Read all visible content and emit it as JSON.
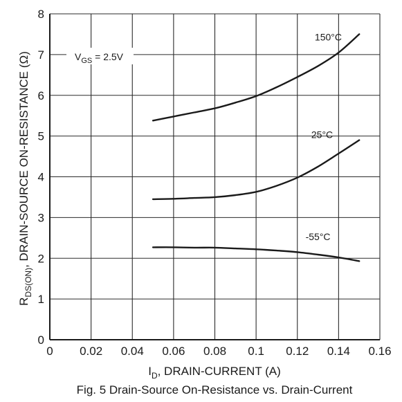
{
  "chart_data": {
    "type": "line",
    "xlabel": {
      "main": "I",
      "sub": "D",
      "rest": ", DRAIN-CURRENT (A)"
    },
    "ylabel": {
      "main": "R",
      "sub": "DS(ON)",
      "rest": ", DRAIN-SOURCE ON-RESISTANCE (Ω)"
    },
    "caption": "Fig. 5  Drain-Source On-Resistance vs. Drain-Current",
    "annotation": {
      "main": "V",
      "sub": "GS",
      "rest": " = 2.5V"
    },
    "xlim": [
      0,
      0.16
    ],
    "ylim": [
      0,
      8
    ],
    "xticks": [
      "0",
      "0.02",
      "0.04",
      "0.06",
      "0.08",
      "0.1",
      "0.12",
      "0.14",
      "0.16"
    ],
    "yticks": [
      "0",
      "1",
      "2",
      "3",
      "4",
      "5",
      "6",
      "7",
      "8"
    ],
    "grid": true,
    "series": [
      {
        "name": "150°C",
        "x": [
          0.05,
          0.06,
          0.07,
          0.08,
          0.09,
          0.1,
          0.11,
          0.12,
          0.13,
          0.14,
          0.15
        ],
        "y": [
          5.38,
          5.48,
          5.58,
          5.68,
          5.82,
          5.98,
          6.2,
          6.45,
          6.72,
          7.05,
          7.5
        ]
      },
      {
        "name": "25°C",
        "x": [
          0.05,
          0.06,
          0.07,
          0.08,
          0.09,
          0.1,
          0.11,
          0.12,
          0.13,
          0.14,
          0.15
        ],
        "y": [
          3.45,
          3.46,
          3.48,
          3.5,
          3.55,
          3.63,
          3.78,
          3.98,
          4.25,
          4.57,
          4.9
        ]
      },
      {
        "name": "-55°C",
        "x": [
          0.05,
          0.06,
          0.07,
          0.08,
          0.09,
          0.1,
          0.11,
          0.12,
          0.13,
          0.14,
          0.15
        ],
        "y": [
          2.27,
          2.27,
          2.26,
          2.26,
          2.24,
          2.22,
          2.19,
          2.15,
          2.09,
          2.02,
          1.93
        ]
      }
    ],
    "series_label_anchors": [
      {
        "x": 0.135,
        "y": 7.35
      },
      {
        "x": 0.132,
        "y": 4.95
      },
      {
        "x": 0.13,
        "y": 2.45
      }
    ]
  }
}
